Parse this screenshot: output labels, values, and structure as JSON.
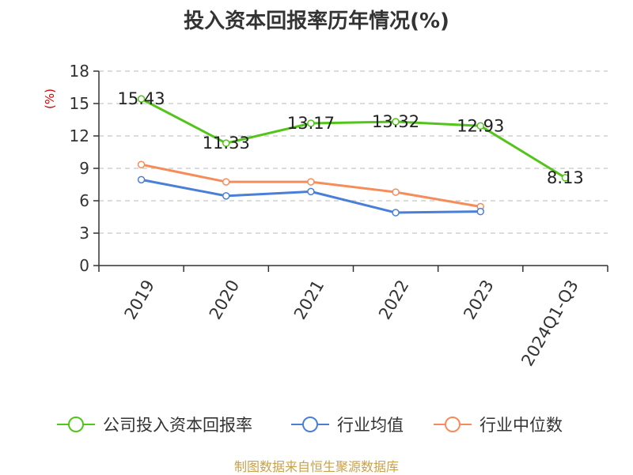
{
  "title": "投入资本回报率历年情况(%)",
  "source": "制图数据来自恒生聚源数据库",
  "chart_data": {
    "type": "line",
    "categories": [
      "2019",
      "2020",
      "2021",
      "2022",
      "2023",
      "2024Q1-Q3"
    ],
    "ylabel": "(%)",
    "ylim": [
      0,
      18
    ],
    "yticks": [
      0,
      3,
      6,
      9,
      12,
      15,
      18
    ],
    "grid": true,
    "legend_position": "bottom",
    "series": [
      {
        "name": "公司投入资本回报率",
        "color": "#52c41a",
        "values": [
          15.43,
          11.33,
          13.17,
          13.32,
          12.93,
          8.13
        ],
        "labels": [
          "15.43",
          "11.33",
          "13.17",
          "13.32",
          "12.93",
          "8.13"
        ]
      },
      {
        "name": "行业均值",
        "color": "#4a7fd8",
        "values": [
          7.95,
          6.45,
          6.85,
          4.9,
          5.0,
          null
        ]
      },
      {
        "name": "行业中位数",
        "color": "#f58c5a",
        "values": [
          9.35,
          7.75,
          7.75,
          6.8,
          5.45,
          null
        ]
      }
    ]
  }
}
